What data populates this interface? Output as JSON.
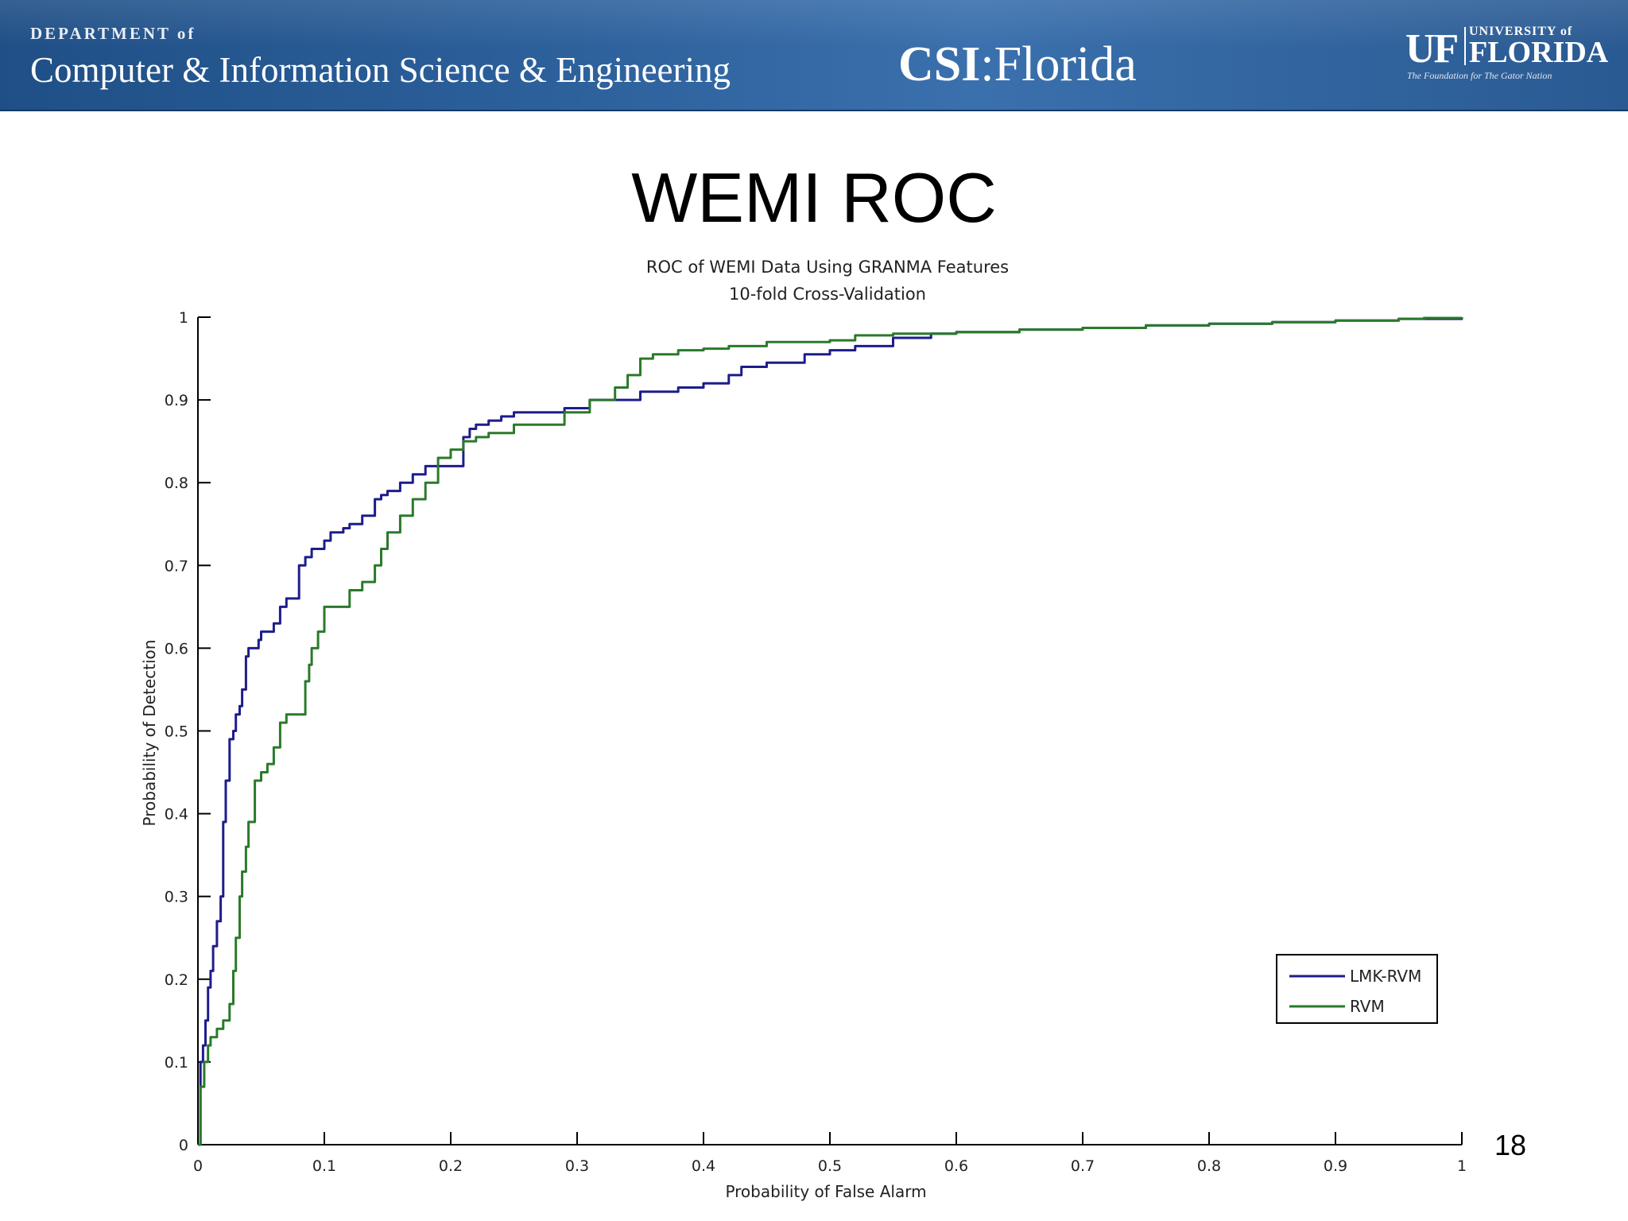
{
  "header": {
    "dept_small": "DEPARTMENT of",
    "dept_name": "Computer & Information Science & Engineering",
    "csi_bold": "CSI",
    "csi_rest": ":Florida",
    "uf_mark": "UF",
    "uf_university": "UNIVERSITY of",
    "uf_florida": "FLORIDA",
    "uf_tagline": "The Foundation for The Gator Nation",
    "colors": {
      "banner": "#2d619c",
      "text": "#ffffff"
    }
  },
  "slide": {
    "title": "WEMI ROC",
    "page_number": "18"
  },
  "chart_data": {
    "type": "line",
    "title": "ROC of WEMI Data Using GRANMA Features",
    "subtitle": "10-fold Cross-Validation",
    "xlabel": "Probability of False Alarm",
    "ylabel": "Probability of Detection",
    "xlim": [
      0,
      1
    ],
    "ylim": [
      0,
      1
    ],
    "xticks": [
      "0",
      "0.1",
      "0.2",
      "0.3",
      "0.4",
      "0.5",
      "0.6",
      "0.7",
      "0.8",
      "0.9",
      "1"
    ],
    "yticks": [
      "0",
      "0.1",
      "0.2",
      "0.3",
      "0.4",
      "0.5",
      "0.6",
      "0.7",
      "0.8",
      "0.9",
      "1"
    ],
    "grid": false,
    "legend_position": "bottom-right",
    "series": [
      {
        "name": "LMK-RVM",
        "color": "#1d1d8c",
        "x": [
          0,
          0.002,
          0.004,
          0.006,
          0.008,
          0.01,
          0.012,
          0.015,
          0.018,
          0.02,
          0.022,
          0.025,
          0.028,
          0.03,
          0.033,
          0.035,
          0.038,
          0.04,
          0.043,
          0.045,
          0.048,
          0.05,
          0.055,
          0.06,
          0.065,
          0.07,
          0.075,
          0.08,
          0.085,
          0.088,
          0.09,
          0.095,
          0.1,
          0.105,
          0.11,
          0.115,
          0.12,
          0.13,
          0.14,
          0.145,
          0.15,
          0.16,
          0.17,
          0.18,
          0.19,
          0.2,
          0.21,
          0.215,
          0.22,
          0.23,
          0.24,
          0.25,
          0.27,
          0.28,
          0.29,
          0.3,
          0.31,
          0.32,
          0.35,
          0.36,
          0.38,
          0.4,
          0.42,
          0.43,
          0.45,
          0.48,
          0.5,
          0.52,
          0.55,
          0.58,
          0.6,
          0.65,
          0.7,
          0.75,
          0.8,
          0.85,
          0.9,
          0.95,
          1.0
        ],
        "y": [
          0,
          0.1,
          0.12,
          0.15,
          0.19,
          0.21,
          0.24,
          0.27,
          0.3,
          0.39,
          0.44,
          0.49,
          0.5,
          0.52,
          0.53,
          0.55,
          0.59,
          0.6,
          0.6,
          0.6,
          0.61,
          0.62,
          0.62,
          0.63,
          0.65,
          0.66,
          0.66,
          0.7,
          0.71,
          0.71,
          0.72,
          0.72,
          0.73,
          0.74,
          0.74,
          0.745,
          0.75,
          0.76,
          0.78,
          0.785,
          0.79,
          0.8,
          0.81,
          0.82,
          0.82,
          0.82,
          0.855,
          0.865,
          0.87,
          0.875,
          0.88,
          0.885,
          0.885,
          0.885,
          0.89,
          0.89,
          0.9,
          0.9,
          0.91,
          0.91,
          0.915,
          0.92,
          0.93,
          0.94,
          0.945,
          0.955,
          0.96,
          0.965,
          0.975,
          0.98,
          0.982,
          0.985,
          0.987,
          0.99,
          0.992,
          0.994,
          0.996,
          0.998,
          1.0
        ]
      },
      {
        "name": "RVM",
        "color": "#2a7a2a",
        "x": [
          0,
          0.002,
          0.005,
          0.008,
          0.01,
          0.015,
          0.02,
          0.025,
          0.028,
          0.03,
          0.033,
          0.035,
          0.038,
          0.04,
          0.045,
          0.05,
          0.055,
          0.06,
          0.065,
          0.07,
          0.075,
          0.08,
          0.085,
          0.088,
          0.09,
          0.095,
          0.1,
          0.105,
          0.11,
          0.12,
          0.13,
          0.14,
          0.145,
          0.15,
          0.16,
          0.17,
          0.18,
          0.19,
          0.2,
          0.21,
          0.22,
          0.23,
          0.25,
          0.27,
          0.29,
          0.31,
          0.33,
          0.34,
          0.35,
          0.36,
          0.38,
          0.4,
          0.42,
          0.45,
          0.5,
          0.52,
          0.55,
          0.6,
          0.65,
          0.7,
          0.75,
          0.8,
          0.85,
          0.9,
          0.95,
          0.97,
          1.0
        ],
        "y": [
          0,
          0.07,
          0.1,
          0.12,
          0.13,
          0.14,
          0.15,
          0.17,
          0.21,
          0.25,
          0.3,
          0.33,
          0.36,
          0.39,
          0.44,
          0.45,
          0.46,
          0.48,
          0.51,
          0.52,
          0.52,
          0.52,
          0.56,
          0.58,
          0.6,
          0.62,
          0.65,
          0.65,
          0.65,
          0.67,
          0.68,
          0.7,
          0.72,
          0.74,
          0.76,
          0.78,
          0.8,
          0.83,
          0.84,
          0.85,
          0.855,
          0.86,
          0.87,
          0.87,
          0.885,
          0.9,
          0.915,
          0.93,
          0.95,
          0.955,
          0.96,
          0.962,
          0.965,
          0.97,
          0.972,
          0.978,
          0.98,
          0.982,
          0.985,
          0.987,
          0.99,
          0.992,
          0.994,
          0.996,
          0.998,
          0.999,
          1.0
        ]
      }
    ]
  }
}
